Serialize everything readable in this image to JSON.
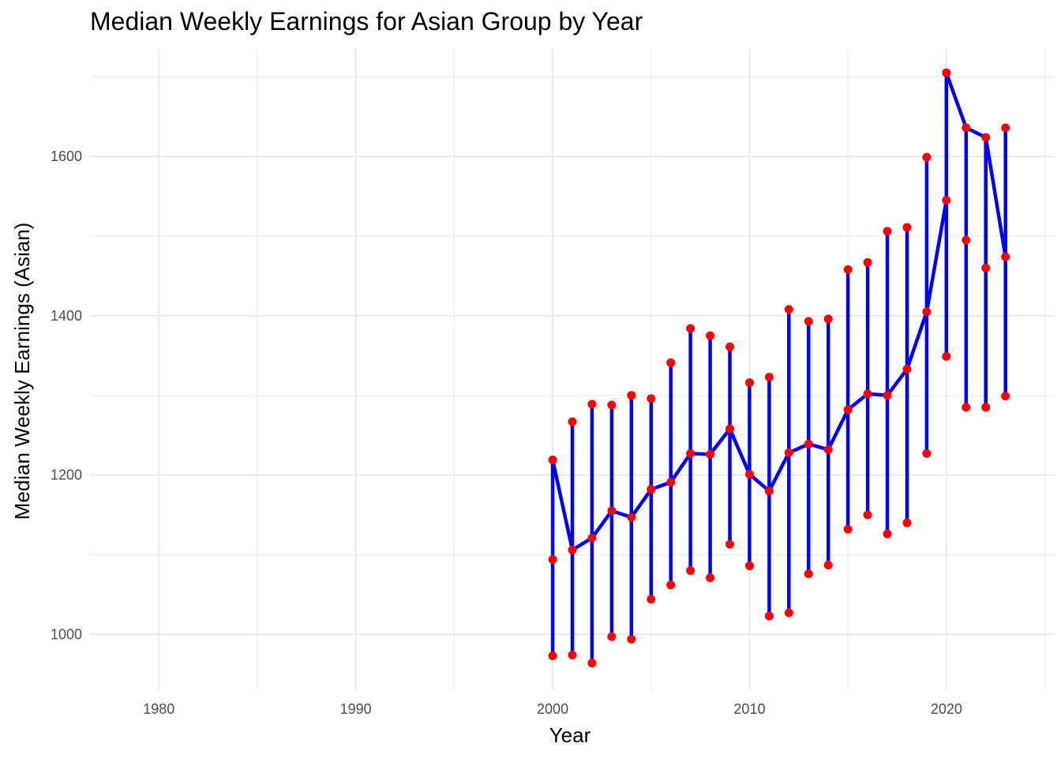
{
  "chart_data": {
    "type": "line",
    "title": "Median Weekly Earnings for Asian Group by Year",
    "xlabel": "Year",
    "ylabel": "Median Weekly Earnings (Asian)",
    "xlim": [
      1976.5,
      2025.5
    ],
    "ylim": [
      930,
      1735
    ],
    "x_ticks": [
      1980,
      1990,
      2000,
      2010,
      2020
    ],
    "x_tick_labels": [
      "1980",
      "1990",
      "2000",
      "2010",
      "2020"
    ],
    "y_ticks": [
      1000,
      1200,
      1400,
      1600
    ],
    "y_tick_labels": [
      "1000",
      "1200",
      "1400",
      "1600"
    ],
    "grid": true,
    "legend": "none",
    "line_color": "#0000ff",
    "point_color": "#ff0000",
    "series": [
      {
        "x": [
          2000,
          2000,
          2000,
          2000,
          2001,
          2001,
          2001,
          2001,
          2002,
          2002,
          2002,
          2002,
          2003,
          2003,
          2003,
          2003,
          2004,
          2004,
          2004,
          2004,
          2005,
          2005,
          2005,
          2005,
          2006,
          2006,
          2006,
          2006,
          2007,
          2007,
          2007,
          2007,
          2008,
          2008,
          2008,
          2008,
          2009,
          2009,
          2009,
          2009,
          2010,
          2010,
          2010,
          2010,
          2011,
          2011,
          2011,
          2011,
          2012,
          2012,
          2012,
          2012,
          2013,
          2013,
          2013,
          2013,
          2014,
          2014,
          2014,
          2014,
          2015,
          2015,
          2015,
          2015,
          2016,
          2016,
          2016,
          2016,
          2017,
          2017,
          2017,
          2017,
          2018,
          2018,
          2018,
          2018,
          2019,
          2019,
          2019,
          2019,
          2020,
          2020,
          2020,
          2021,
          2021,
          2021,
          2021,
          2022,
          2022,
          2022,
          2022,
          2023,
          2023,
          2023,
          2023
        ],
        "y": [
          1219,
          1094,
          973,
          1219,
          1106,
          974,
          1267,
          1106,
          1121,
          964,
          1289,
          1121,
          1155,
          997,
          1288,
          1155,
          1147,
          994,
          1300,
          1147,
          1182,
          1044,
          1296,
          1182,
          1191,
          1062,
          1341,
          1191,
          1227,
          1080,
          1384,
          1227,
          1226,
          1071,
          1375,
          1226,
          1258,
          1113,
          1361,
          1258,
          1201,
          1086,
          1316,
          1201,
          1180,
          1023,
          1323,
          1180,
          1228,
          1027,
          1408,
          1228,
          1239,
          1076,
          1393,
          1239,
          1232,
          1087,
          1396,
          1232,
          1282,
          1132,
          1458,
          1282,
          1302,
          1150,
          1467,
          1302,
          1300,
          1126,
          1506,
          1300,
          1333,
          1140,
          1511,
          1333,
          1405,
          1227,
          1599,
          1405,
          1545,
          1349,
          1705,
          1636,
          1495,
          1285,
          1636,
          1624,
          1460,
          1285,
          1624,
          1474,
          1299,
          1636,
          1474
        ]
      }
    ]
  }
}
